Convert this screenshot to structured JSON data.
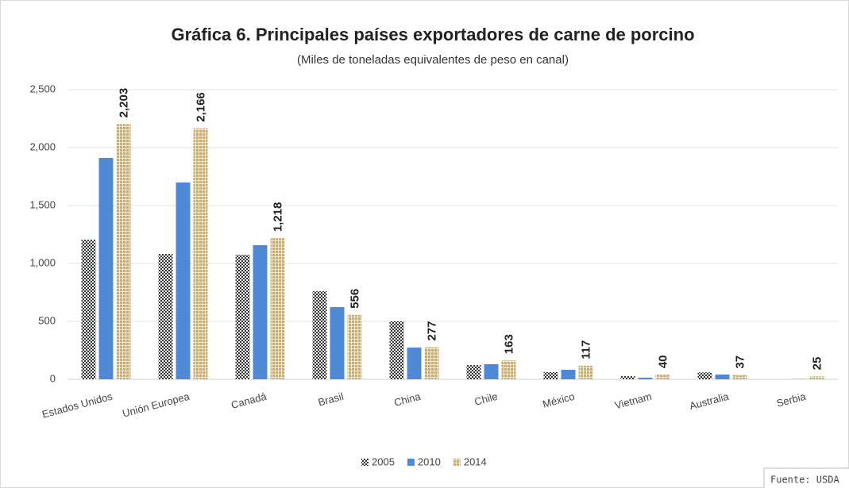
{
  "chart_data": {
    "type": "bar",
    "title": "Gráfica 6. Principales países exportadores de carne de porcino",
    "subtitle": "(Miles de toneladas equivalentes de peso en canal)",
    "source": "Fuente: USDA",
    "categories": [
      "Estados Unidos",
      "Unión Europea",
      "Canadá",
      "Brasil",
      "China",
      "Chile",
      "México",
      "Vietnam",
      "Australia",
      "Serbia"
    ],
    "series": [
      {
        "name": "2005",
        "color": "#333333",
        "values": [
          1205,
          1082,
          1075,
          760,
          500,
          123,
          62,
          27,
          60,
          0
        ]
      },
      {
        "name": "2010",
        "color": "#4f88d4",
        "values": [
          1911,
          1699,
          1158,
          623,
          274,
          130,
          82,
          14,
          41,
          2
        ]
      },
      {
        "name": "2014",
        "color": "#c9ac6e",
        "values": [
          2203,
          2166,
          1218,
          556,
          277,
          163,
          117,
          40,
          37,
          25
        ],
        "value_labels": [
          "2,203",
          "2,166",
          "1,218",
          "556",
          "277",
          "163",
          "117",
          "40",
          "37",
          "25"
        ]
      }
    ],
    "ylim": [
      0,
      2500
    ],
    "yticks": [
      0,
      500,
      {
        "value": 1000,
        "label": "1,000"
      },
      {
        "value": 1500,
        "label": "1,500"
      },
      {
        "value": 2000,
        "label": "2,000"
      },
      {
        "value": 2500,
        "label": "2,500"
      }
    ],
    "grid": true,
    "legend": "bottom"
  }
}
